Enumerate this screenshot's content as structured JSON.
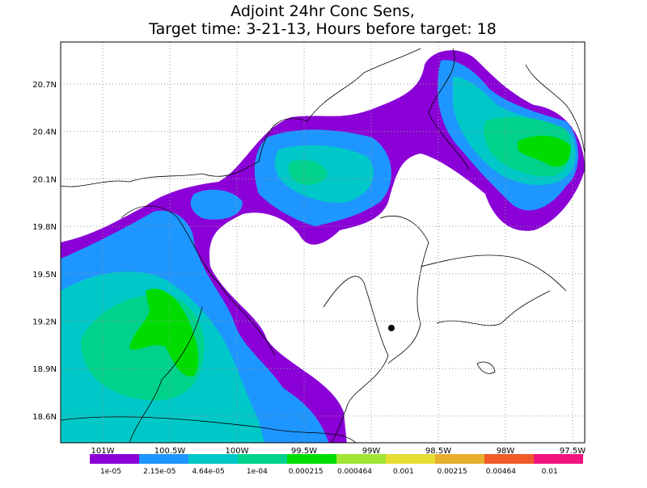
{
  "title": [
    "Adjoint 24hr Conc Sens,",
    "Target time: 3-21-13, Hours before target: 18"
  ],
  "lat_labels": [
    "20.7N",
    "20.4N",
    "20.1N",
    "19.8N",
    "19.5N",
    "19.2N",
    "18.9N",
    "18.6N"
  ],
  "lon_labels": [
    "101W",
    "100.5W",
    "100W",
    "99.5W",
    "99W",
    "98.5W",
    "98W",
    "97.5W"
  ],
  "colorbar": {
    "labels": [
      "1e-05",
      "2.15e-05",
      "4.64e-05",
      "1e-04",
      "0.000215",
      "0.000464",
      "0.001",
      "0.00215",
      "0.00464",
      "0.01"
    ],
    "colors": [
      "#8a00d6",
      "#1e96ff",
      "#00c8c8",
      "#00d28c",
      "#00dc00",
      "#a0e632",
      "#e6dc32",
      "#e6af2d",
      "#f05a28",
      "#f0147f"
    ]
  }
}
